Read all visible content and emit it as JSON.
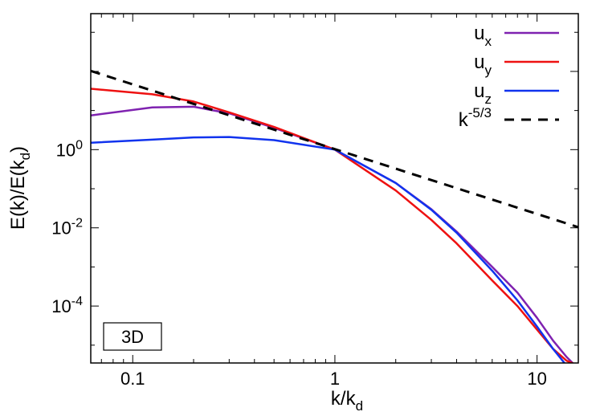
{
  "chart_data": {
    "type": "line",
    "title": "",
    "scale": {
      "x": "log",
      "y": "log"
    },
    "xlim": [
      0.062,
      16
    ],
    "ylim": [
      3.5e-06,
      3000
    ],
    "xlabel": {
      "base": "k/k",
      "sub": "d"
    },
    "ylabel": {
      "base": "E(k)/E(k",
      "sub": "d",
      "tail": ")"
    },
    "x_ticks": [
      {
        "value": 0.1,
        "label": "0.1"
      },
      {
        "value": 1,
        "label": "1"
      },
      {
        "value": 10,
        "label": "10"
      }
    ],
    "y_ticks": [
      {
        "value": 1,
        "mant": "10",
        "exp": "0"
      },
      {
        "value": 0.01,
        "mant": "10",
        "exp": "-2"
      },
      {
        "value": 0.0001,
        "mant": "10",
        "exp": "-4"
      }
    ],
    "inset_label": "3D",
    "legend_position": "top-right",
    "series": [
      {
        "name": "u",
        "sub": "x",
        "color": "#7f22b0",
        "dash": "",
        "x": [
          0.062,
          0.125,
          0.2,
          0.3,
          0.5,
          1,
          2,
          3,
          4,
          6,
          8,
          10,
          12,
          14,
          15
        ],
        "y": [
          7.5,
          12,
          12.5,
          8.5,
          3.6,
          1.0,
          0.14,
          0.03,
          0.008,
          0.001,
          0.00022,
          5e-05,
          1.3e-05,
          5e-06,
          3.5e-06
        ]
      },
      {
        "name": "u",
        "sub": "y",
        "color": "#ee1111",
        "dash": "",
        "x": [
          0.062,
          0.125,
          0.2,
          0.3,
          0.5,
          1,
          2,
          3,
          4,
          6,
          8,
          10,
          12,
          14,
          16
        ],
        "y": [
          36,
          26,
          17,
          9,
          3.8,
          1.0,
          0.09,
          0.016,
          0.004,
          0.00045,
          0.0001,
          2.5e-05,
          8e-06,
          4e-06,
          3e-06
        ]
      },
      {
        "name": "u",
        "sub": "z",
        "color": "#1133ee",
        "dash": "",
        "x": [
          0.062,
          0.125,
          0.2,
          0.3,
          0.5,
          1,
          2,
          3,
          4,
          6,
          8,
          10,
          12,
          14
        ],
        "y": [
          1.5,
          1.8,
          2.05,
          2.1,
          1.75,
          1.0,
          0.14,
          0.029,
          0.0075,
          0.0008,
          0.00014,
          3e-05,
          8e-06,
          3e-06
        ]
      },
      {
        "name": "k",
        "sup": "-5/3",
        "color": "#000000",
        "dash": "12,9",
        "x": [
          0.062,
          16
        ],
        "y": [
          103,
          0.0104
        ]
      }
    ]
  }
}
